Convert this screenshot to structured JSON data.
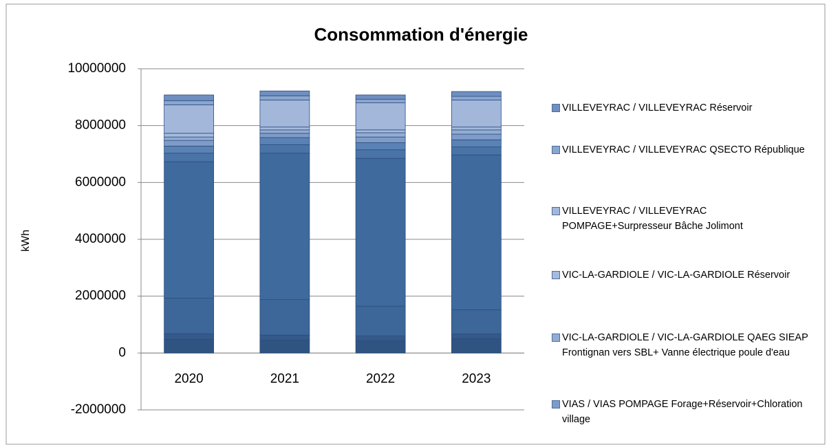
{
  "chart_data": {
    "type": "stacked_bar",
    "title": "Consommation d'énergie",
    "y_label": "kWh",
    "categories": [
      "2020",
      "2021",
      "2022",
      "2023"
    ],
    "ylim": [
      -2000000,
      10000000
    ],
    "yticks": [
      -2000000,
      0,
      2000000,
      4000000,
      6000000,
      8000000,
      10000000
    ],
    "grid": true,
    "series": [
      {
        "color": "#2f5482",
        "values": [
          480000,
          450000,
          430000,
          500000
        ]
      },
      {
        "color": "#34598a",
        "values": [
          200000,
          180000,
          170000,
          170000
        ]
      },
      {
        "color": "#3d6699",
        "values": [
          1250000,
          1250000,
          1050000,
          850000
        ]
      },
      {
        "color": "#3f6a9e",
        "values": [
          4800000,
          5150000,
          5200000,
          5450000
        ]
      },
      {
        "color": "#4a74a8",
        "values": [
          300000,
          300000,
          300000,
          280000
        ]
      },
      {
        "color": "#5a82b4",
        "values": [
          250000,
          250000,
          250000,
          250000
        ]
      },
      {
        "name": "VIAS / VIAS POMPAGE Forage+Réservoir+Chloration village",
        "color": "#7f9cc8",
        "values": [
          200000,
          150000,
          200000,
          200000
        ]
      },
      {
        "name": "VIC-LA-GARDIOLE / VIC-LA-GARDIOLE QAEG SIEAP Frontignan vers SBL+ Vanne électrique  poule d'eau",
        "color": "#93acd3",
        "values": [
          120000,
          120000,
          150000,
          150000
        ]
      },
      {
        "name": "VIC-LA-GARDIOLE / VIC-LA-GARDIOLE Réservoir",
        "color": "#a5bbdd",
        "values": [
          130000,
          100000,
          100000,
          100000
        ]
      },
      {
        "name": "VILLEVEYRAC / VILLEVEYRAC POMPAGE+Surpresseur Bâche Jolimont",
        "color": "#a3b7da",
        "values": [
          1000000,
          950000,
          950000,
          950000
        ]
      },
      {
        "name": "VILLEVEYRAC / VILLEVEYRAC QSECTO République",
        "color": "#8aa5cf",
        "values": [
          150000,
          150000,
          130000,
          130000
        ]
      },
      {
        "name": "VILLEVEYRAC / VILLEVEYRAC Réservoir",
        "color": "#6f8fc0",
        "values": [
          200000,
          170000,
          150000,
          170000
        ]
      }
    ]
  }
}
